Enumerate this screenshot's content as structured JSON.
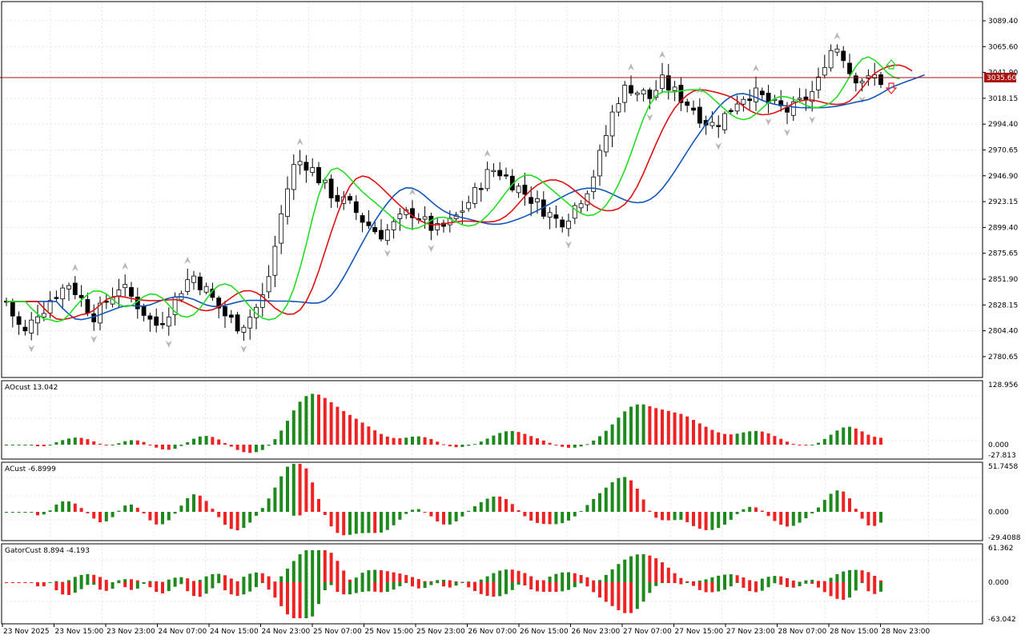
{
  "price_labels": [
    "3089.40",
    "3065.60",
    "3041.90",
    "3018.15",
    "2994.40",
    "2970.65",
    "2946.90",
    "2923.15",
    "2899.40",
    "2875.65",
    "2851.90",
    "2828.15",
    "2804.40",
    "2780.65"
  ],
  "current_price": "3035.60",
  "time_labels": [
    "23 Nov 2025",
    "23 Nov 15:00",
    "23 Nov 23:00",
    "24 Nov 07:00",
    "24 Nov 15:00",
    "24 Nov 23:00",
    "25 Nov 07:00",
    "25 Nov 15:00",
    "25 Nov 23:00",
    "26 Nov 07:00",
    "26 Nov 15:00",
    "26 Nov 23:00",
    "27 Nov 07:00",
    "27 Nov 15:00",
    "27 Nov 23:00",
    "28 Nov 07:00",
    "28 Nov 15:00",
    "28 Nov 23:00"
  ],
  "panels": {
    "ao": {
      "title": "AOcust 13.042",
      "max": "128.956",
      "zero": "0.000",
      "min": "-27.813"
    },
    "ac": {
      "title": "ACust -6.8999",
      "max": "51.7458",
      "zero": "0.000",
      "min": "-29.4088"
    },
    "gator": {
      "title": "GatorCust 8.894 -4.193",
      "max": "61.362",
      "zero": "0.000",
      "min": "-63.042"
    }
  },
  "colors": {
    "bull": "#1e8a1e",
    "bear": "#ee2222",
    "lips": "#22dd22",
    "teeth": "#dd1111",
    "jaw": "#1155bb",
    "priceLine": "#aa1111"
  },
  "chart_data": {
    "type": "candlestick",
    "symbol_timeframe": "H1",
    "price_range": [
      2757,
      3110
    ],
    "main_closes": [
      2828,
      2815,
      2805,
      2798,
      2808,
      2818,
      2822,
      2830,
      2836,
      2840,
      2845,
      2838,
      2830,
      2822,
      2815,
      2820,
      2828,
      2835,
      2842,
      2838,
      2832,
      2825,
      2818,
      2810,
      2806,
      2812,
      2820,
      2830,
      2840,
      2848,
      2852,
      2845,
      2838,
      2830,
      2822,
      2815,
      2810,
      2806,
      2808,
      2814,
      2822,
      2832,
      2852,
      2880,
      2910,
      2935,
      2955,
      2960,
      2958,
      2952,
      2944,
      2936,
      2930,
      2925,
      2922,
      2918,
      2912,
      2905,
      2900,
      2895,
      2892,
      2895,
      2900,
      2905,
      2910,
      2912,
      2908,
      2902,
      2898,
      2895,
      2898,
      2902,
      2908,
      2915,
      2922,
      2930,
      2940,
      2948,
      2952,
      2950,
      2945,
      2940,
      2935,
      2930,
      2925,
      2920,
      2915,
      2910,
      2905,
      2905,
      2910,
      2918,
      2926,
      2935,
      2948,
      2965,
      2985,
      3005,
      3020,
      3028,
      3030,
      3026,
      3024,
      3020,
      3028,
      3035,
      3030,
      3025,
      3020,
      3015,
      3010,
      3003,
      2998,
      2995,
      2998,
      3003,
      3010,
      3018,
      3022,
      3024,
      3023,
      3020,
      3015,
      3012,
      3010,
      3008,
      3010,
      3015,
      3020,
      3025,
      3035,
      3055,
      3065,
      3068,
      3060,
      3045,
      3040,
      3038,
      3036,
      3040,
      3036
    ],
    "oscillator_panels": [
      "AOcust",
      "ACust",
      "GatorCust"
    ]
  }
}
